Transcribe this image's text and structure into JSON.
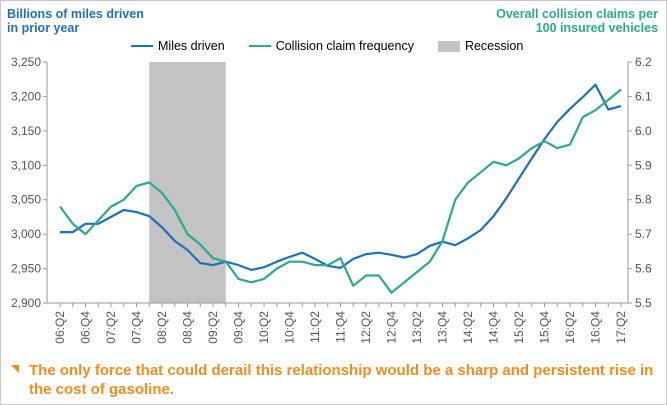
{
  "chart_data": {
    "type": "line",
    "ylabel_left_lines": [
      "Billions of miles driven",
      "in prior year"
    ],
    "ylabel_right_lines": [
      "Overall collision claims per",
      "100 insured vehicles"
    ],
    "ylim_left": [
      2900,
      3250
    ],
    "yticks_left": [
      "2,900",
      "2,950",
      "3,000",
      "3,050",
      "3,100",
      "3,150",
      "3,200",
      "3,250"
    ],
    "ylim_right": [
      5.5,
      6.2
    ],
    "yticks_right": [
      "5.5",
      "5.6",
      "5.7",
      "5.8",
      "5.9",
      "6.0",
      "6.1",
      "6.2"
    ],
    "x": [
      "06:Q2",
      "06:Q3",
      "06:Q4",
      "07:Q1",
      "07:Q2",
      "07:Q3",
      "07:Q4",
      "08:Q1",
      "08:Q2",
      "08:Q3",
      "08:Q4",
      "09:Q1",
      "09:Q2",
      "09:Q3",
      "09:Q4",
      "10:Q1",
      "10:Q2",
      "10:Q3",
      "10:Q4",
      "11:Q1",
      "11:Q2",
      "11:Q3",
      "11:Q4",
      "12:Q1",
      "12:Q2",
      "12:Q3",
      "12:Q4",
      "13:Q1",
      "13:Q2",
      "13:Q3",
      "13:Q4",
      "14:Q1",
      "14:Q2",
      "14:Q3",
      "14:Q4",
      "15:Q1",
      "15:Q2",
      "15:Q3",
      "15:Q4",
      "16:Q1",
      "16:Q2",
      "16:Q3",
      "16:Q4",
      "17:Q1",
      "17:Q2"
    ],
    "xtick_labels": [
      "06:Q2",
      "06:Q4",
      "07:Q2",
      "07:Q4",
      "08:Q2",
      "08:Q4",
      "09:Q2",
      "09:Q4",
      "10:Q2",
      "10:Q4",
      "11:Q2",
      "11:Q4",
      "12:Q2",
      "12:Q4",
      "13:Q2",
      "13:Q4",
      "14:Q2",
      "14:Q4",
      "15:Q2",
      "15:Q4",
      "16:Q2",
      "16:Q4",
      "17:Q2"
    ],
    "series": [
      {
        "name": "Miles driven",
        "axis": "left",
        "color": "#1f6fc0",
        "values": [
          3003,
          3003,
          3015,
          3015,
          3025,
          3035,
          3032,
          3026,
          3010,
          2990,
          2977,
          2958,
          2955,
          2960,
          2955,
          2948,
          2952,
          2960,
          2967,
          2973,
          2964,
          2954,
          2951,
          2964,
          2971,
          2973,
          2970,
          2966,
          2971,
          2983,
          2989,
          2984,
          2994,
          3006,
          3026,
          3052,
          3081,
          3110,
          3138,
          3163,
          3182,
          3199,
          3217,
          3181,
          3186
        ]
      },
      {
        "name": "Collision claim frequency",
        "axis": "right",
        "color": "#2aaa8a",
        "values": [
          5.78,
          5.73,
          5.7,
          5.74,
          5.78,
          5.8,
          5.84,
          5.85,
          5.82,
          5.77,
          5.7,
          5.67,
          5.63,
          5.62,
          5.57,
          5.56,
          5.57,
          5.6,
          5.62,
          5.62,
          5.61,
          5.61,
          5.63,
          5.55,
          5.58,
          5.58,
          5.53,
          5.56,
          5.59,
          5.62,
          5.68,
          5.8,
          5.85,
          5.88,
          5.91,
          5.9,
          5.92,
          5.95,
          5.97,
          5.95,
          5.96,
          6.04,
          6.06,
          6.09,
          6.12
        ]
      }
    ],
    "recession": {
      "name": "Recession",
      "start": "08:Q1",
      "end": "09:Q3",
      "color": "#c3c3c3"
    },
    "legend_position": "top",
    "grid": false
  },
  "footnote": "The only force that could derail this relationship would be a sharp and persistent rise in the cost of gasoline."
}
